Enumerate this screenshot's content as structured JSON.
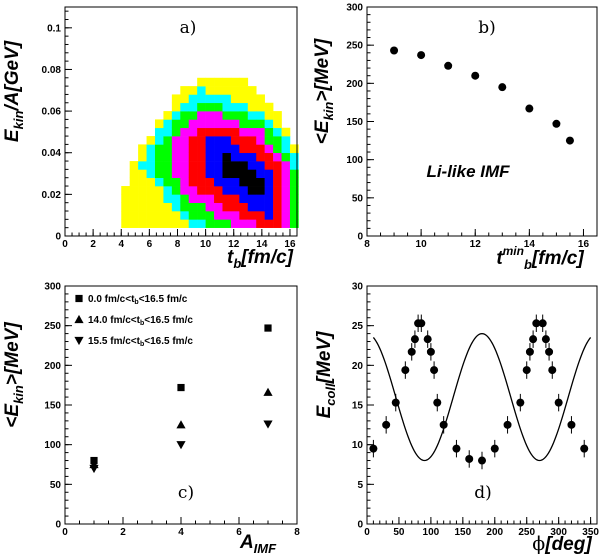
{
  "chart_data": [
    {
      "panel": "a)",
      "type": "heatmap",
      "xlabel_main": "t",
      "xlabel_sub": "b",
      "xlabel_unit": "[fm/c]",
      "ylabel_main": "E",
      "ylabel_sub": "kin",
      "ylabel_unit": "/A[GeV]",
      "xlim": [
        0,
        16.5
      ],
      "ylim": [
        0,
        0.11
      ],
      "xticks": [
        "0",
        "2",
        "4",
        "6",
        "8",
        "10",
        "12",
        "14",
        "16"
      ],
      "yticks": [
        "0",
        "0.02",
        "0.04",
        "0.06",
        "0.08",
        "0.1"
      ],
      "grid": false,
      "bin_width": [
        0.6,
        0.004
      ],
      "palette": [
        "#ffff00",
        "#00ffff",
        "#00ff00",
        "#ff00ff",
        "#ff0000",
        "#0000ff",
        "#000000"
      ]
    },
    {
      "panel": "b)",
      "type": "scatter",
      "xlabel_main": "t",
      "xlabel_sup": "min",
      "xlabel_sub": "b",
      "xlabel_unit": "[fm/c]",
      "ylabel_main": "<E",
      "ylabel_sub": "kin",
      "ylabel_unit": ">[MeV]",
      "xlim": [
        8,
        16.5
      ],
      "ylim": [
        0,
        300
      ],
      "xticks": [
        "8",
        "10",
        "12",
        "14",
        "16"
      ],
      "yticks": [
        "0",
        "50",
        "100",
        "150",
        "200",
        "250",
        "300"
      ],
      "annotation": "Li-like IMF",
      "x": [
        9,
        10,
        11,
        12,
        13,
        14,
        15,
        15.5
      ],
      "y": [
        243,
        237,
        223,
        210,
        195,
        167,
        147,
        125
      ]
    },
    {
      "panel": "c)",
      "type": "scatter",
      "xlabel_main": "A",
      "xlabel_sub": "IMF",
      "ylabel_main": "<E",
      "ylabel_sub": "kin",
      "ylabel_unit": ">[MeV]",
      "xlim": [
        0,
        8
      ],
      "ylim": [
        0,
        300
      ],
      "xticks": [
        "0",
        "2",
        "4",
        "6",
        "8"
      ],
      "yticks": [
        "0",
        "50",
        "100",
        "150",
        "200",
        "250",
        "300"
      ],
      "legend_position": "top-left",
      "series": [
        {
          "legend": [
            "0.0 fm/c<t",
            "b",
            "<16.5 fm/c"
          ],
          "marker": "square",
          "x": [
            1,
            4,
            7
          ],
          "y": [
            80,
            172,
            247
          ]
        },
        {
          "legend": [
            "14.0 fm/c<t",
            "b",
            "<16.5 fm/c"
          ],
          "marker": "triangle-up",
          "x": [
            1,
            4,
            7
          ],
          "y": [
            75,
            125,
            166
          ]
        },
        {
          "legend": [
            "15.5 fm/c<t",
            "b",
            "<16.5 fm/c"
          ],
          "marker": "triangle-down",
          "x": [
            1,
            4,
            7
          ],
          "y": [
            70,
            100,
            126
          ]
        }
      ]
    },
    {
      "panel": "d)",
      "type": "scatter",
      "xlabel_main": "ϕ",
      "xlabel_unit": "[deg]",
      "ylabel_main": "E",
      "ylabel_sub": "coll",
      "ylabel_unit": "[MeV]",
      "xlim": [
        0,
        360
      ],
      "ylim": [
        0,
        30
      ],
      "xticks": [
        "0",
        "50",
        "100",
        "150",
        "200",
        "250",
        "300",
        "350"
      ],
      "yticks": [
        "0",
        "5",
        "10",
        "15",
        "20",
        "25",
        "30"
      ],
      "x": [
        10,
        30,
        45,
        60,
        70,
        75,
        80,
        85,
        95,
        100,
        105,
        110,
        120,
        140,
        160,
        180,
        200,
        220,
        240,
        250,
        255,
        260,
        265,
        275,
        280,
        285,
        290,
        300,
        320,
        340
      ],
      "y": [
        9.5,
        12.5,
        15.3,
        19.4,
        21.7,
        23.3,
        25.3,
        25.3,
        23.3,
        21.7,
        19.4,
        15.3,
        12.5,
        9.5,
        8.2,
        8.0,
        9.5,
        12.5,
        15.3,
        19.4,
        21.7,
        23.3,
        25.3,
        25.3,
        23.3,
        21.7,
        19.4,
        15.3,
        12.5,
        9.5
      ],
      "yerr": 1.1,
      "fit_curve": {
        "form": "A + B*cos^2(phi)",
        "A": 8.0,
        "B": 16.0
      }
    }
  ]
}
